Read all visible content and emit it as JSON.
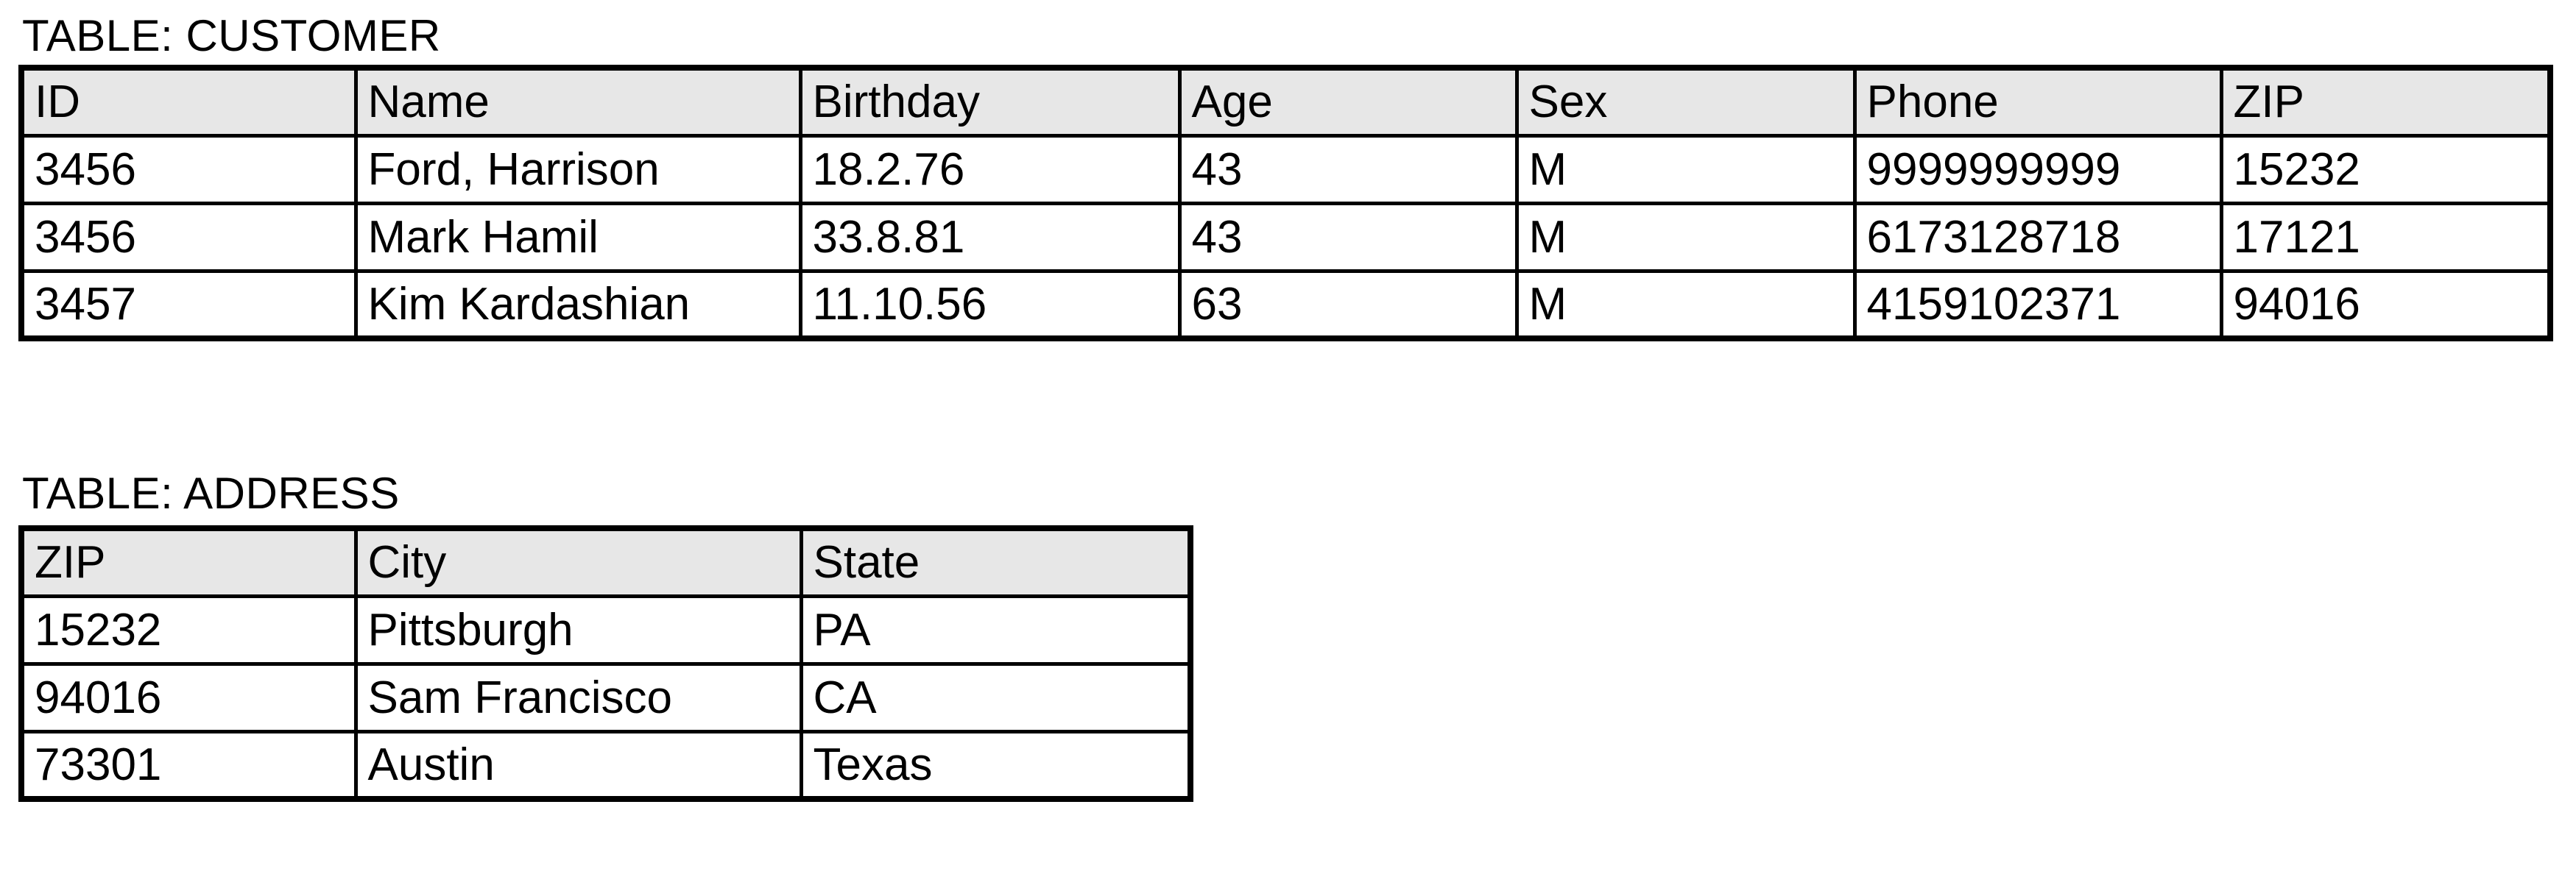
{
  "colors": {
    "header_fill": "#e7e7e7",
    "border": "#000000",
    "text": "#000000",
    "page_background": "#ffffff"
  },
  "customer_section": {
    "title": "TABLE: CUSTOMER",
    "columns": [
      "ID",
      "Name",
      "Birthday",
      "Age",
      "Sex",
      "Phone",
      "ZIP"
    ],
    "rows": [
      [
        "3456",
        "Ford, Harrison",
        "18.2.76",
        "43",
        "M",
        "9999999999",
        "15232"
      ],
      [
        "3456",
        "Mark Hamil",
        "33.8.81",
        "43",
        "M",
        "6173128718",
        "17121"
      ],
      [
        "3457",
        "Kim Kardashian",
        "11.10.56",
        "63",
        "M",
        "4159102371",
        "94016"
      ]
    ]
  },
  "address_section": {
    "title": "TABLE: ADDRESS",
    "columns": [
      "ZIP",
      "City",
      "State"
    ],
    "rows": [
      [
        "15232",
        "Pittsburgh",
        "PA"
      ],
      [
        "94016",
        "Sam Francisco",
        "CA"
      ],
      [
        "73301",
        "Austin",
        "Texas"
      ]
    ]
  }
}
